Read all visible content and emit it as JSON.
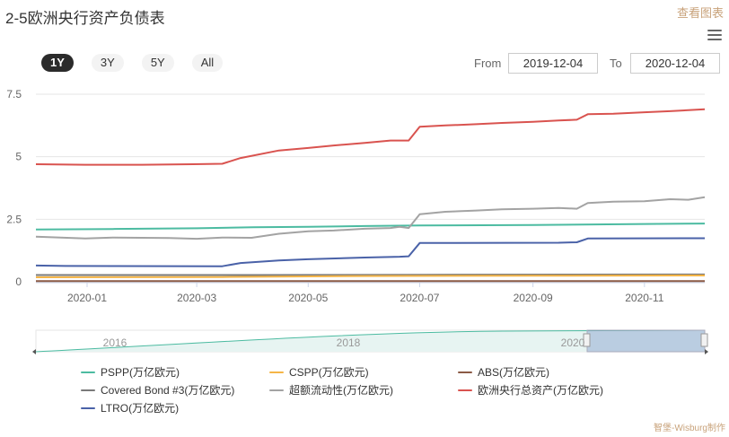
{
  "header": {
    "title": "2-5欧洲央行资产负债表",
    "view_link": "查看图表"
  },
  "range_selector": {
    "buttons": [
      "1Y",
      "3Y",
      "5Y",
      "All"
    ],
    "active": "1Y",
    "from_label": "From",
    "from_value": "2019-12-04",
    "to_label": "To",
    "to_value": "2020-12-04"
  },
  "footer": {
    "credit": "智堡-Wisburg制作"
  },
  "navigator": {
    "tick_labels": [
      "2016",
      "2018",
      "2020"
    ]
  },
  "chart_data": {
    "type": "line",
    "title": "2-5欧洲央行资产负债表",
    "xlim": [
      "2019-12-04",
      "2020-12-04"
    ],
    "ylim": [
      0,
      7.5
    ],
    "x_ticks": [
      "2020-01",
      "2020-03",
      "2020-05",
      "2020-07",
      "2020-09",
      "2020-11"
    ],
    "y_ticks": [
      "0",
      "2.5",
      "5",
      "7.5"
    ],
    "grid": true,
    "legend_position": "bottom",
    "series": [
      {
        "name": "PSPP(万亿欧元)",
        "color": "#4cbba1",
        "points": [
          [
            "2019-12-04",
            2.09
          ],
          [
            "2020-01-15",
            2.11
          ],
          [
            "2020-03-01",
            2.14
          ],
          [
            "2020-04-01",
            2.18
          ],
          [
            "2020-05-01",
            2.2
          ],
          [
            "2020-06-01",
            2.23
          ],
          [
            "2020-07-01",
            2.25
          ],
          [
            "2020-09-01",
            2.27
          ],
          [
            "2020-11-01",
            2.31
          ],
          [
            "2020-12-04",
            2.33
          ]
        ]
      },
      {
        "name": "CSPP(万亿欧元)",
        "color": "#f5b547",
        "points": [
          [
            "2019-12-04",
            0.18
          ],
          [
            "2020-03-15",
            0.19
          ],
          [
            "2020-06-01",
            0.23
          ],
          [
            "2020-09-01",
            0.24
          ],
          [
            "2020-12-04",
            0.25
          ]
        ]
      },
      {
        "name": "ABS(万亿欧元)",
        "color": "#8b5a45",
        "points": [
          [
            "2019-12-04",
            0.03
          ],
          [
            "2020-06-01",
            0.03
          ],
          [
            "2020-12-04",
            0.03
          ]
        ]
      },
      {
        "name": "Covered Bond #3(万亿欧元)",
        "color": "#7a7a7a",
        "points": [
          [
            "2019-12-04",
            0.27
          ],
          [
            "2020-04-01",
            0.27
          ],
          [
            "2020-07-01",
            0.28
          ],
          [
            "2020-12-04",
            0.29
          ]
        ]
      },
      {
        "name": "超额流动性(万亿欧元)",
        "color": "#a3a3a3",
        "points": [
          [
            "2019-12-04",
            1.8
          ],
          [
            "2019-12-31",
            1.73
          ],
          [
            "2020-01-15",
            1.77
          ],
          [
            "2020-02-15",
            1.75
          ],
          [
            "2020-03-01",
            1.72
          ],
          [
            "2020-03-15",
            1.77
          ],
          [
            "2020-03-31",
            1.76
          ],
          [
            "2020-04-15",
            1.92
          ],
          [
            "2020-05-01",
            2.02
          ],
          [
            "2020-05-15",
            2.05
          ],
          [
            "2020-06-01",
            2.12
          ],
          [
            "2020-06-15",
            2.15
          ],
          [
            "2020-06-20",
            2.2
          ],
          [
            "2020-06-25",
            2.15
          ],
          [
            "2020-07-01",
            2.7
          ],
          [
            "2020-07-15",
            2.8
          ],
          [
            "2020-08-01",
            2.85
          ],
          [
            "2020-08-15",
            2.9
          ],
          [
            "2020-09-01",
            2.92
          ],
          [
            "2020-09-15",
            2.95
          ],
          [
            "2020-09-25",
            2.92
          ],
          [
            "2020-10-01",
            3.15
          ],
          [
            "2020-10-15",
            3.2
          ],
          [
            "2020-11-01",
            3.22
          ],
          [
            "2020-11-15",
            3.3
          ],
          [
            "2020-11-25",
            3.28
          ],
          [
            "2020-12-04",
            3.38
          ]
        ]
      },
      {
        "name": "欧洲央行总资产(万亿欧元)",
        "color": "#d9534f",
        "points": [
          [
            "2019-12-04",
            4.7
          ],
          [
            "2019-12-31",
            4.68
          ],
          [
            "2020-01-31",
            4.68
          ],
          [
            "2020-02-28",
            4.7
          ],
          [
            "2020-03-15",
            4.72
          ],
          [
            "2020-03-25",
            4.95
          ],
          [
            "2020-04-15",
            5.25
          ],
          [
            "2020-05-01",
            5.35
          ],
          [
            "2020-05-15",
            5.45
          ],
          [
            "2020-06-01",
            5.55
          ],
          [
            "2020-06-15",
            5.65
          ],
          [
            "2020-06-25",
            5.65
          ],
          [
            "2020-07-01",
            6.2
          ],
          [
            "2020-07-15",
            6.25
          ],
          [
            "2020-08-01",
            6.3
          ],
          [
            "2020-08-15",
            6.35
          ],
          [
            "2020-09-01",
            6.4
          ],
          [
            "2020-09-15",
            6.45
          ],
          [
            "2020-09-25",
            6.48
          ],
          [
            "2020-10-01",
            6.7
          ],
          [
            "2020-10-15",
            6.72
          ],
          [
            "2020-11-01",
            6.78
          ],
          [
            "2020-11-15",
            6.82
          ],
          [
            "2020-12-04",
            6.9
          ]
        ]
      },
      {
        "name": "LTRO(万亿欧元)",
        "color": "#4a62a8",
        "points": [
          [
            "2019-12-04",
            0.65
          ],
          [
            "2019-12-20",
            0.63
          ],
          [
            "2020-03-15",
            0.62
          ],
          [
            "2020-03-25",
            0.75
          ],
          [
            "2020-04-15",
            0.85
          ],
          [
            "2020-05-01",
            0.9
          ],
          [
            "2020-06-01",
            0.97
          ],
          [
            "2020-06-20",
            1.0
          ],
          [
            "2020-06-25",
            1.02
          ],
          [
            "2020-07-01",
            1.55
          ],
          [
            "2020-07-15",
            1.55
          ],
          [
            "2020-09-15",
            1.56
          ],
          [
            "2020-09-25",
            1.58
          ],
          [
            "2020-10-01",
            1.73
          ],
          [
            "2020-12-04",
            1.74
          ]
        ]
      }
    ]
  }
}
